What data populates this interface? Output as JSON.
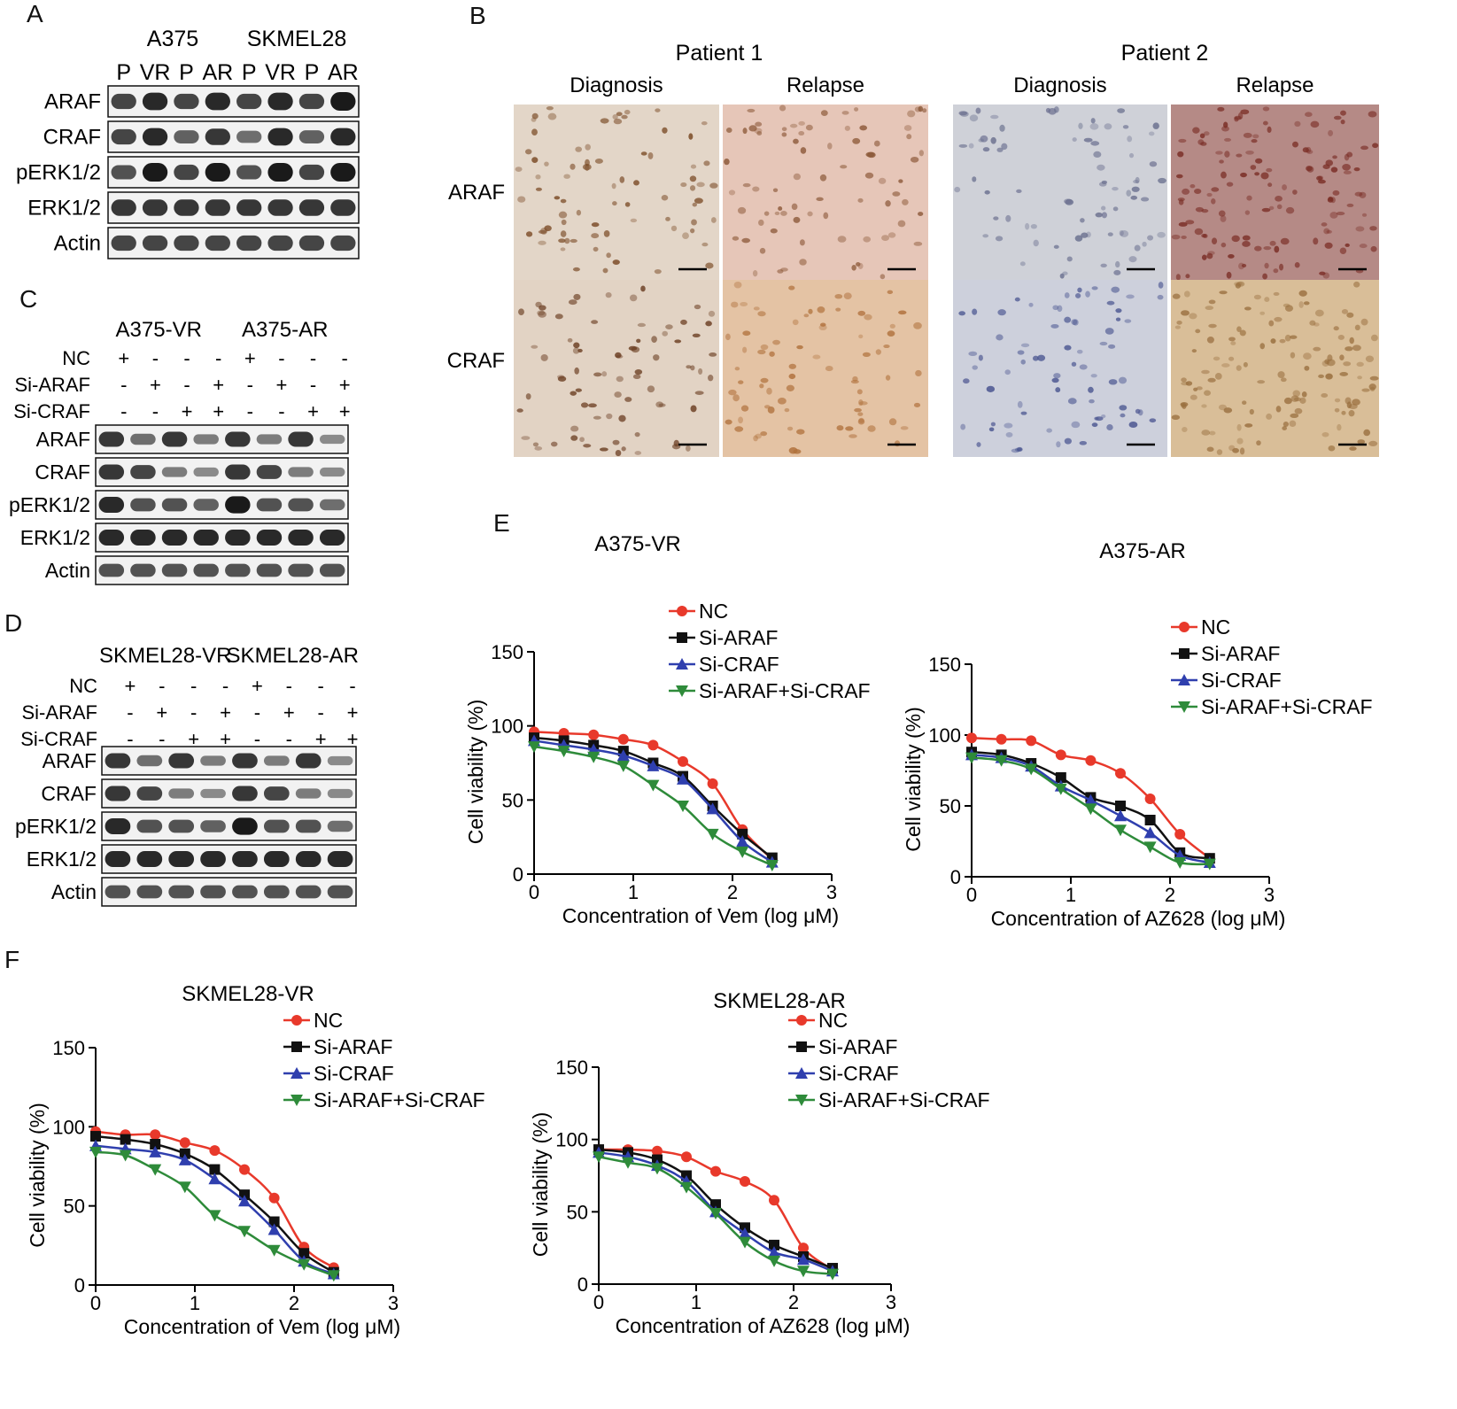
{
  "panel_letters": [
    "A",
    "B",
    "C",
    "D",
    "E",
    "F"
  ],
  "blotA": {
    "cell_lines": [
      "A375",
      "SKMEL28"
    ],
    "lanes": [
      "P",
      "VR",
      "P",
      "AR",
      "P",
      "VR",
      "P",
      "AR"
    ],
    "rows": [
      "ARAF",
      "CRAF",
      "pERK1/2",
      "ERK1/2",
      "Actin"
    ]
  },
  "blotC": {
    "groups": [
      "A375-VR",
      "A375-AR"
    ],
    "conditions": [
      {
        "label": "NC",
        "signs": [
          "+",
          "-",
          "-",
          "-",
          "+",
          "-",
          "-",
          "-"
        ]
      },
      {
        "label": "Si-ARAF",
        "signs": [
          "-",
          "+",
          "-",
          "+",
          "-",
          "+",
          "-",
          "+"
        ]
      },
      {
        "label": "Si-CRAF",
        "signs": [
          "-",
          "-",
          "+",
          "+",
          "-",
          "-",
          "+",
          "+"
        ]
      }
    ],
    "rows": [
      "ARAF",
      "CRAF",
      "pERK1/2",
      "ERK1/2",
      "Actin"
    ]
  },
  "blotD": {
    "groups": [
      "SKMEL28-VR",
      "SKMEL28-AR"
    ],
    "conditions": [
      {
        "label": "NC",
        "signs": [
          "+",
          "-",
          "-",
          "-",
          "+",
          "-",
          "-",
          "-"
        ]
      },
      {
        "label": "Si-ARAF",
        "signs": [
          "-",
          "+",
          "-",
          "+",
          "-",
          "+",
          "-",
          "+"
        ]
      },
      {
        "label": "Si-CRAF",
        "signs": [
          "-",
          "-",
          "+",
          "+",
          "-",
          "-",
          "+",
          "+"
        ]
      }
    ],
    "rows": [
      "ARAF",
      "CRAF",
      "pERK1/2",
      "ERK1/2",
      "Actin"
    ]
  },
  "ihc": {
    "patients": [
      "Patient 1",
      "Patient 2"
    ],
    "stages": [
      "Diagnosis",
      "Relapse",
      "Diagnosis",
      "Relapse"
    ],
    "markers": [
      "ARAF",
      "CRAF"
    ]
  },
  "colors": {
    "NC": "#e8392b",
    "Si-ARAF": "#111111",
    "Si-CRAF": "#2f3fae",
    "Si-ARAF+Si-CRAF": "#2e8b3a"
  },
  "chart_data": [
    {
      "type": "line",
      "title": "A375-VR",
      "xlabel": "Concentration of Vem (log μM)",
      "ylabel": "Cell viability (%)",
      "xlim": [
        0,
        3
      ],
      "ylim": [
        0,
        150
      ],
      "xticks": [
        0,
        1,
        2,
        3
      ],
      "yticks": [
        0,
        50,
        100,
        150
      ],
      "legend": "top-right",
      "series": [
        {
          "name": "NC",
          "marker": "circle",
          "x": [
            0,
            0.3,
            0.6,
            0.9,
            1.2,
            1.5,
            1.8,
            2.1,
            2.4
          ],
          "y": [
            96,
            95,
            94,
            91,
            87,
            76,
            61,
            30,
            10
          ]
        },
        {
          "name": "Si-ARAF",
          "marker": "square",
          "x": [
            0,
            0.3,
            0.6,
            0.9,
            1.2,
            1.5,
            1.8,
            2.1,
            2.4
          ],
          "y": [
            92,
            90,
            87,
            83,
            75,
            66,
            46,
            27,
            11
          ]
        },
        {
          "name": "Si-CRAF",
          "marker": "triangle-up",
          "x": [
            0,
            0.3,
            0.6,
            0.9,
            1.2,
            1.5,
            1.8,
            2.1,
            2.4
          ],
          "y": [
            90,
            87,
            84,
            80,
            73,
            64,
            44,
            22,
            8
          ]
        },
        {
          "name": "Si-ARAF+Si-CRAF",
          "marker": "triangle-down",
          "x": [
            0,
            0.3,
            0.6,
            0.9,
            1.2,
            1.5,
            1.8,
            2.1,
            2.4
          ],
          "y": [
            86,
            83,
            79,
            73,
            60,
            46,
            27,
            15,
            6
          ]
        }
      ]
    },
    {
      "type": "line",
      "title": "A375-AR",
      "xlabel": "Concentration of AZ628 (log μM)",
      "ylabel": "Cell viability (%)",
      "xlim": [
        0,
        3
      ],
      "ylim": [
        0,
        150
      ],
      "xticks": [
        0,
        1,
        2,
        3
      ],
      "yticks": [
        0,
        50,
        100,
        150
      ],
      "legend": "top-right",
      "series": [
        {
          "name": "NC",
          "marker": "circle",
          "x": [
            0,
            0.3,
            0.6,
            0.9,
            1.2,
            1.5,
            1.8,
            2.1,
            2.4
          ],
          "y": [
            98,
            97,
            96,
            86,
            82,
            73,
            55,
            30,
            13
          ]
        },
        {
          "name": "Si-ARAF",
          "marker": "square",
          "x": [
            0,
            0.3,
            0.6,
            0.9,
            1.2,
            1.5,
            1.8,
            2.1,
            2.4
          ],
          "y": [
            88,
            86,
            80,
            70,
            56,
            50,
            40,
            17,
            13
          ]
        },
        {
          "name": "Si-CRAF",
          "marker": "triangle-up",
          "x": [
            0,
            0.3,
            0.6,
            0.9,
            1.2,
            1.5,
            1.8,
            2.1,
            2.4
          ],
          "y": [
            86,
            84,
            78,
            64,
            54,
            43,
            31,
            15,
            10
          ]
        },
        {
          "name": "Si-ARAF+Si-CRAF",
          "marker": "triangle-down",
          "x": [
            0,
            0.3,
            0.6,
            0.9,
            1.2,
            1.5,
            1.8,
            2.1,
            2.4
          ],
          "y": [
            84,
            82,
            76,
            62,
            48,
            33,
            21,
            10,
            9
          ]
        }
      ]
    },
    {
      "type": "line",
      "title": "SKMEL28-VR",
      "xlabel": "Concentration of Vem (log μM)",
      "ylabel": "Cell viability (%)",
      "xlim": [
        0,
        3
      ],
      "ylim": [
        0,
        150
      ],
      "xticks": [
        0,
        1,
        2,
        3
      ],
      "yticks": [
        0,
        50,
        100,
        150
      ],
      "legend": "top-right",
      "series": [
        {
          "name": "NC",
          "marker": "circle",
          "x": [
            0,
            0.3,
            0.6,
            0.9,
            1.2,
            1.5,
            1.8,
            2.1,
            2.4
          ],
          "y": [
            97,
            95,
            95,
            90,
            85,
            73,
            55,
            24,
            11
          ]
        },
        {
          "name": "Si-ARAF",
          "marker": "square",
          "x": [
            0,
            0.3,
            0.6,
            0.9,
            1.2,
            1.5,
            1.8,
            2.1,
            2.4
          ],
          "y": [
            94,
            92,
            89,
            83,
            73,
            57,
            40,
            20,
            8
          ]
        },
        {
          "name": "Si-CRAF",
          "marker": "triangle-up",
          "x": [
            0,
            0.3,
            0.6,
            0.9,
            1.2,
            1.5,
            1.8,
            2.1,
            2.4
          ],
          "y": [
            88,
            86,
            84,
            79,
            67,
            53,
            35,
            15,
            7
          ]
        },
        {
          "name": "Si-ARAF+Si-CRAF",
          "marker": "triangle-down",
          "x": [
            0,
            0.3,
            0.6,
            0.9,
            1.2,
            1.5,
            1.8,
            2.1,
            2.4
          ],
          "y": [
            84,
            82,
            73,
            62,
            44,
            34,
            22,
            13,
            6
          ]
        }
      ]
    },
    {
      "type": "line",
      "title": "SKMEL28-AR",
      "xlabel": "Concentration of AZ628 (log μM)",
      "ylabel": "Cell viability (%)",
      "xlim": [
        0,
        3
      ],
      "ylim": [
        0,
        150
      ],
      "xticks": [
        0,
        1,
        2,
        3
      ],
      "yticks": [
        0,
        50,
        100,
        150
      ],
      "legend": "top-right",
      "series": [
        {
          "name": "NC",
          "marker": "circle",
          "x": [
            0,
            0.3,
            0.6,
            0.9,
            1.2,
            1.5,
            1.8,
            2.1,
            2.4
          ],
          "y": [
            93,
            93,
            92,
            88,
            78,
            71,
            58,
            25,
            10
          ]
        },
        {
          "name": "Si-ARAF",
          "marker": "square",
          "x": [
            0,
            0.3,
            0.6,
            0.9,
            1.2,
            1.5,
            1.8,
            2.1,
            2.4
          ],
          "y": [
            93,
            91,
            86,
            75,
            55,
            39,
            27,
            19,
            11
          ]
        },
        {
          "name": "Si-CRAF",
          "marker": "triangle-up",
          "x": [
            0,
            0.3,
            0.6,
            0.9,
            1.2,
            1.5,
            1.8,
            2.1,
            2.4
          ],
          "y": [
            91,
            88,
            82,
            71,
            50,
            35,
            22,
            17,
            9
          ]
        },
        {
          "name": "Si-ARAF+Si-CRAF",
          "marker": "triangle-down",
          "x": [
            0,
            0.3,
            0.6,
            0.9,
            1.2,
            1.5,
            1.8,
            2.1,
            2.4
          ],
          "y": [
            88,
            84,
            80,
            67,
            49,
            29,
            16,
            9,
            7
          ]
        }
      ]
    }
  ]
}
